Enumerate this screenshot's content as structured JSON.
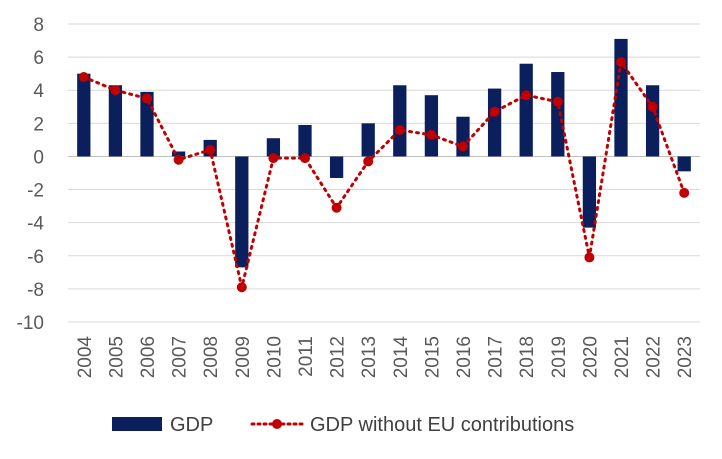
{
  "chart_data": {
    "type": "bar",
    "categories": [
      "2004",
      "2005",
      "2006",
      "2007",
      "2008",
      "2009",
      "2010",
      "2011",
      "2012",
      "2013",
      "2014",
      "2015",
      "2016",
      "2017",
      "2018",
      "2019",
      "2020",
      "2021",
      "2022",
      "2023"
    ],
    "series": [
      {
        "name": "GDP",
        "type": "bar",
        "color": "#0b1f5c",
        "values": [
          5.0,
          4.3,
          3.9,
          0.3,
          1.0,
          -6.7,
          1.1,
          1.9,
          -1.3,
          2.0,
          4.3,
          3.7,
          2.4,
          4.1,
          5.6,
          5.1,
          -4.3,
          7.1,
          4.3,
          -0.9
        ]
      },
      {
        "name": "GDP without EU contributions",
        "type": "line",
        "style": "dotted-with-markers",
        "color": "#c00000",
        "values": [
          4.8,
          4.0,
          3.5,
          -0.2,
          0.4,
          -7.9,
          -0.1,
          -0.1,
          -3.1,
          -0.3,
          1.6,
          1.3,
          0.6,
          2.7,
          3.7,
          3.3,
          -6.1,
          5.7,
          3.0,
          -2.2
        ]
      }
    ],
    "title": "",
    "xlabel": "",
    "ylabel": "",
    "ylim": [
      -10,
      8
    ],
    "yticks": [
      8,
      6,
      4,
      2,
      0,
      -2,
      -4,
      -6,
      -8,
      -10
    ],
    "grid": true,
    "legend_position": "bottom"
  }
}
